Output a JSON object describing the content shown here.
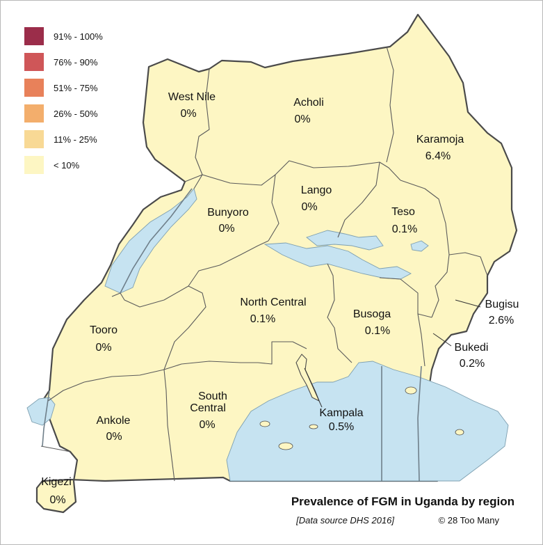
{
  "title": "Prevalence of FGM in Uganda by region",
  "source": "[Data source DHS 2016]",
  "copyright": "© 28 Too Many",
  "legend": [
    {
      "label": "91% - 100%",
      "color": "#9b2d4a"
    },
    {
      "label": "76% - 90%",
      "color": "#cf5658"
    },
    {
      "label": "51% - 75%",
      "color": "#e8815a"
    },
    {
      "label": "26% - 50%",
      "color": "#f3ae6c"
    },
    {
      "label": "11% - 25%",
      "color": "#f8d995"
    },
    {
      "label": "< 10%",
      "color": "#fdf6c3"
    }
  ],
  "regions": {
    "west_nile": {
      "name": "West Nile",
      "value": "0%"
    },
    "acholi": {
      "name": "Acholi",
      "value": "0%"
    },
    "karamoja": {
      "name": "Karamoja",
      "value": "6.4%"
    },
    "lango": {
      "name": "Lango",
      "value": "0%"
    },
    "bunyoro": {
      "name": "Bunyoro",
      "value": "0%"
    },
    "teso": {
      "name": "Teso",
      "value": "0.1%"
    },
    "north_central": {
      "name": "North Central",
      "value": "0.1%"
    },
    "busoga": {
      "name": "Busoga",
      "value": "0.1%"
    },
    "bugisu": {
      "name": "Bugisu",
      "value": "2.6%"
    },
    "bukedi": {
      "name": "Bukedi",
      "value": "0.2%"
    },
    "tooro": {
      "name": "Tooro",
      "value": "0%"
    },
    "south_central": {
      "name": "South\nCentral",
      "value": "0%"
    },
    "ankole": {
      "name": "Ankole",
      "value": "0%"
    },
    "kampala": {
      "name": "Kampala",
      "value": "0.5%"
    },
    "kigezi": {
      "name": "Kigezi",
      "value": "0%"
    }
  },
  "colors": {
    "fill_under_10": "#fdf6c3",
    "water": "#c6e3f1",
    "border": "#4a4a4a"
  }
}
